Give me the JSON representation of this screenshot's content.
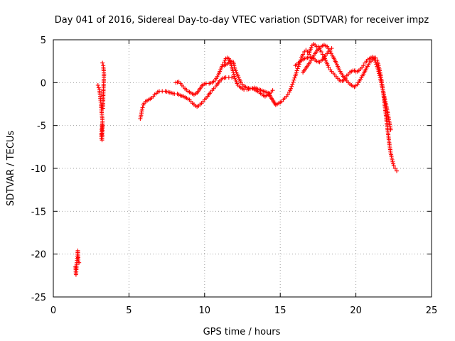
{
  "chart_data": {
    "type": "scatter",
    "title": "Day 041 of 2016, Sidereal Day-to-day VTEC variation (SDTVAR) for receiver impz",
    "xlabel": "GPS time / hours",
    "ylabel": "SDTVAR / TECUs",
    "xlim": [
      0,
      25
    ],
    "ylim": [
      -25,
      5
    ],
    "xticks": [
      0,
      5,
      10,
      15,
      20,
      25
    ],
    "yticks": [
      5,
      0,
      -5,
      -10,
      -15,
      -20,
      -25
    ],
    "grid": true,
    "marker": "+",
    "color": "#ff0000",
    "series": [
      {
        "name": "SDTVAR",
        "x": [
          1.45,
          1.48,
          1.5,
          1.52,
          1.55,
          1.58,
          1.6,
          1.62,
          1.65,
          1.7,
          2.95,
          3.0,
          3.05,
          3.1,
          3.15,
          3.2,
          3.25,
          3.2,
          3.18,
          3.22,
          3.25,
          3.28,
          3.3,
          3.33,
          3.35,
          3.3,
          3.25,
          3.2,
          5.75,
          5.8,
          5.85,
          5.9,
          5.95,
          6.0,
          6.1,
          6.2,
          6.3,
          6.5,
          6.7,
          6.9,
          7.0,
          7.2,
          7.4,
          7.6,
          7.8,
          8.0,
          8.2,
          8.4,
          8.6,
          8.8,
          9.0,
          9.2,
          9.4,
          9.5,
          9.6,
          9.8,
          10.0,
          10.2,
          10.4,
          10.6,
          10.8,
          11.0,
          11.2,
          11.4,
          11.6,
          11.8,
          8.1,
          8.3,
          8.5,
          8.7,
          8.9,
          9.1,
          9.3,
          9.5,
          9.7,
          9.9,
          10.1,
          10.3,
          10.5,
          10.7,
          10.9,
          11.1,
          11.2,
          11.3,
          11.4,
          11.5,
          11.6,
          11.7,
          11.8,
          11.9,
          12.0,
          12.2,
          12.4,
          12.6,
          12.8,
          13.0,
          13.2,
          13.4,
          13.6,
          13.8,
          14.0,
          14.2,
          14.4,
          14.5,
          11.3,
          11.5,
          11.7,
          11.9,
          12.0,
          12.2,
          12.4,
          12.6,
          12.8,
          13.0,
          13.3,
          13.6,
          13.9,
          14.2,
          14.7,
          14.9,
          15.1,
          15.3,
          15.5,
          15.6,
          15.7,
          15.8,
          15.9,
          16.0,
          16.1,
          16.2,
          16.3,
          16.4,
          16.5,
          16.6,
          16.7,
          16.8,
          16.9,
          17.0,
          17.1,
          17.2,
          17.3,
          17.4,
          17.5,
          17.6,
          17.7,
          17.8,
          17.9,
          18.0,
          18.1,
          18.2,
          18.3,
          18.4,
          18.5,
          18.6,
          18.7,
          18.8,
          18.9,
          19.0,
          19.1,
          19.2,
          19.3,
          19.4,
          19.5,
          19.6,
          19.7,
          19.8,
          19.9,
          20.0,
          20.1,
          20.2,
          20.3,
          20.4,
          20.5,
          20.6,
          20.7,
          20.8,
          20.9,
          21.0,
          21.1,
          21.2,
          21.3,
          21.4,
          21.5,
          21.6,
          21.7,
          21.8,
          21.9,
          22.0,
          22.1,
          22.2,
          22.3,
          16.0,
          16.2,
          16.4,
          16.6,
          16.8,
          17.0,
          17.2,
          17.4,
          17.6,
          17.8,
          18.0,
          18.2,
          18.4,
          16.5,
          16.7,
          16.9,
          17.1,
          17.3,
          17.5,
          17.7,
          17.9,
          18.1,
          18.3,
          18.5,
          18.7,
          18.9,
          19.1,
          19.3,
          19.5,
          19.7,
          19.9,
          20.1,
          20.3,
          20.5,
          20.7,
          20.9,
          21.1,
          21.2,
          21.3,
          21.4,
          21.5,
          21.6,
          21.7,
          21.8,
          21.9,
          22.0,
          22.1,
          22.2,
          22.3,
          22.4,
          22.5,
          22.6,
          22.7
        ],
        "y": [
          -21.5,
          -22.0,
          -22.4,
          -21.8,
          -21.0,
          -20.5,
          -20.0,
          -19.6,
          -20.8,
          -21.0,
          -0.3,
          -0.6,
          -0.8,
          -1.6,
          -2.5,
          -3.5,
          -4.5,
          -5.5,
          -6.5,
          -6.7,
          -5.0,
          -3.0,
          -1.5,
          0.0,
          1.0,
          2.0,
          2.3,
          -6.0,
          -4.2,
          -3.8,
          -3.3,
          -2.9,
          -2.6,
          -2.4,
          -2.2,
          -2.1,
          -2.0,
          -1.8,
          -1.4,
          -1.1,
          -1.0,
          -1.0,
          -1.0,
          -1.1,
          -1.2,
          -1.3,
          -1.3,
          -1.5,
          -1.6,
          -1.8,
          -2.0,
          -2.4,
          -2.7,
          -2.8,
          -2.7,
          -2.4,
          -2.0,
          -1.6,
          -1.1,
          -0.7,
          -0.3,
          0.2,
          0.5,
          0.6,
          0.6,
          0.6,
          0.0,
          0.1,
          -0.3,
          -0.7,
          -1.0,
          -1.2,
          -1.4,
          -1.2,
          -0.7,
          -0.2,
          -0.1,
          -0.1,
          0.0,
          0.3,
          0.9,
          1.7,
          2.1,
          2.4,
          2.8,
          2.9,
          2.8,
          2.4,
          1.8,
          1.2,
          0.5,
          -0.3,
          -0.6,
          -0.8,
          -0.8,
          -0.7,
          -0.7,
          -0.9,
          -1.1,
          -1.4,
          -1.6,
          -1.4,
          -1.1,
          -0.9,
          2.0,
          2.2,
          2.5,
          2.4,
          1.6,
          0.8,
          0.0,
          -0.4,
          -0.6,
          -0.7,
          -0.6,
          -0.8,
          -1.0,
          -1.2,
          -2.6,
          -2.4,
          -2.2,
          -1.8,
          -1.4,
          -1.1,
          -0.7,
          -0.2,
          0.3,
          0.8,
          1.4,
          1.9,
          2.4,
          2.9,
          3.3,
          3.6,
          3.8,
          3.6,
          3.3,
          3.9,
          4.3,
          4.5,
          4.4,
          4.2,
          4.2,
          4.0,
          3.6,
          3.3,
          3.0,
          2.6,
          2.2,
          1.8,
          1.5,
          1.3,
          1.1,
          0.9,
          0.7,
          0.5,
          0.3,
          0.2,
          0.2,
          0.3,
          0.5,
          0.8,
          1.0,
          1.2,
          1.3,
          1.4,
          1.4,
          1.3,
          1.3,
          1.4,
          1.6,
          1.8,
          2.0,
          2.3,
          2.5,
          2.7,
          2.8,
          2.9,
          3.0,
          2.8,
          2.4,
          1.9,
          1.3,
          0.6,
          -0.2,
          -1.0,
          -1.8,
          -2.6,
          -3.5,
          -4.5,
          -5.5,
          2.0,
          2.3,
          2.6,
          2.8,
          2.9,
          3.0,
          2.8,
          2.5,
          2.4,
          2.7,
          3.2,
          3.6,
          4.0,
          1.2,
          1.7,
          2.2,
          2.8,
          3.4,
          3.9,
          4.2,
          4.4,
          4.2,
          3.6,
          3.0,
          2.3,
          1.5,
          0.9,
          0.4,
          0.0,
          -0.3,
          -0.5,
          -0.2,
          0.4,
          1.0,
          1.7,
          2.3,
          2.7,
          2.9,
          2.9,
          2.6,
          2.0,
          1.2,
          0.2,
          -1.0,
          -2.5,
          -4.0,
          -5.5,
          -7.0,
          -8.2,
          -9.0,
          -9.7,
          -10.0,
          -10.3
        ]
      }
    ]
  }
}
